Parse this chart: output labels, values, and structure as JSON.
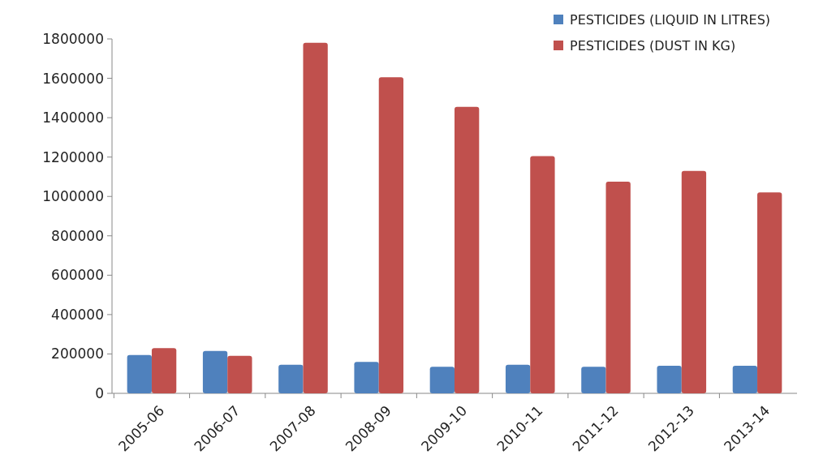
{
  "chart_data": {
    "type": "bar",
    "categories": [
      "2005-06",
      "2006-07",
      "2007-08",
      "2008-09",
      "2009-10",
      "2010-11",
      "2011-12",
      "2012-13",
      "2013-14"
    ],
    "series": [
      {
        "name": "PESTICIDES (LIQUID IN LITRES)",
        "color": "#4f81bd",
        "values": [
          195000,
          215000,
          145000,
          160000,
          135000,
          145000,
          135000,
          140000,
          140000
        ]
      },
      {
        "name": "PESTICIDES (DUST IN KG)",
        "color": "#c0504d",
        "values": [
          230000,
          190000,
          1780000,
          1605000,
          1455000,
          1205000,
          1075000,
          1130000,
          1020000
        ]
      }
    ],
    "ylim": [
      0,
      1800000
    ],
    "yticks": [
      0,
      200000,
      400000,
      600000,
      800000,
      1000000,
      1200000,
      1400000,
      1600000,
      1800000
    ],
    "grid": false,
    "legend": "top right"
  }
}
